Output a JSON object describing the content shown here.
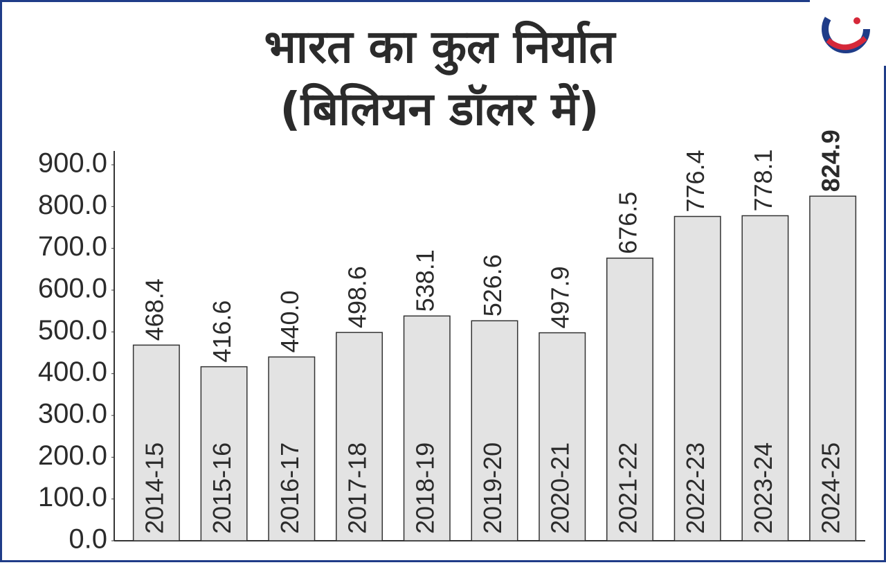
{
  "chart_data": {
    "type": "bar",
    "title": "भारत का कुल निर्यात",
    "subtitle": "(बिलियन डॉलर में)",
    "categories": [
      "2014-15",
      "2015-16",
      "2016-17",
      "2017-18",
      "2018-19",
      "2019-20",
      "2020-21",
      "2021-22",
      "2022-23",
      "2023-24",
      "2024-25"
    ],
    "values": [
      468.4,
      416.6,
      440.0,
      498.6,
      538.1,
      526.6,
      497.9,
      676.5,
      776.4,
      778.1,
      824.9
    ],
    "value_labels": [
      "468.4",
      "416.6",
      "440.0",
      "498.6",
      "538.1",
      "526.6",
      "497.9",
      "676.5",
      "776.4",
      "778.1",
      "824.9"
    ],
    "color": "#e3e3e3",
    "ylim": [
      0,
      900
    ],
    "yticks": [
      {
        "value": 0,
        "label": "0.0"
      },
      {
        "value": 100,
        "label": "100.0"
      },
      {
        "value": 200,
        "label": "200.0"
      },
      {
        "value": 300,
        "label": "300.0"
      },
      {
        "value": 400,
        "label": "400.0"
      },
      {
        "value": 500,
        "label": "500.0"
      },
      {
        "value": 600,
        "label": "600.0"
      },
      {
        "value": 700,
        "label": "700.0"
      },
      {
        "value": 800,
        "label": "800.0"
      },
      {
        "value": 900,
        "label": "900.0"
      }
    ],
    "grid": false
  }
}
